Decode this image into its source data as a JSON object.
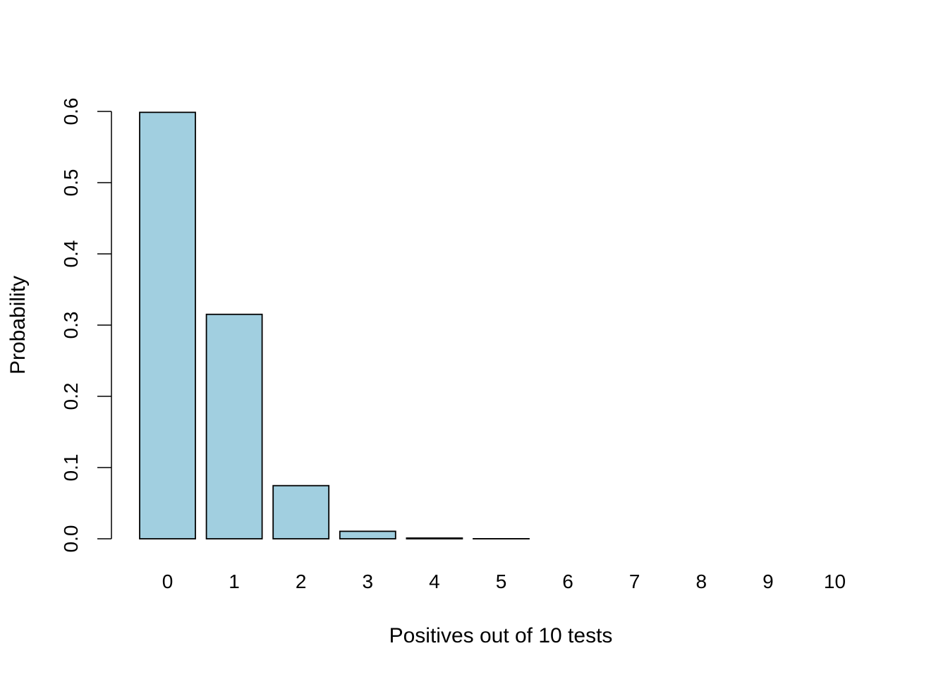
{
  "chart_data": {
    "type": "bar",
    "title": "",
    "xlabel": "Positives out of 10 tests",
    "ylabel": "Probability",
    "categories": [
      "0",
      "1",
      "2",
      "3",
      "4",
      "5",
      "6",
      "7",
      "8",
      "9",
      "10"
    ],
    "values": [
      0.5987,
      0.3151,
      0.0746,
      0.0105,
      0.001,
      0.0001,
      0.0,
      0.0,
      0.0,
      0.0,
      0.0
    ],
    "ylim": [
      0,
      0.6
    ],
    "yticks": [
      "0.0",
      "0.1",
      "0.2",
      "0.3",
      "0.4",
      "0.5",
      "0.6"
    ],
    "grid": false,
    "bar_color": "#a1cfe0",
    "edge_color": "#000000"
  }
}
